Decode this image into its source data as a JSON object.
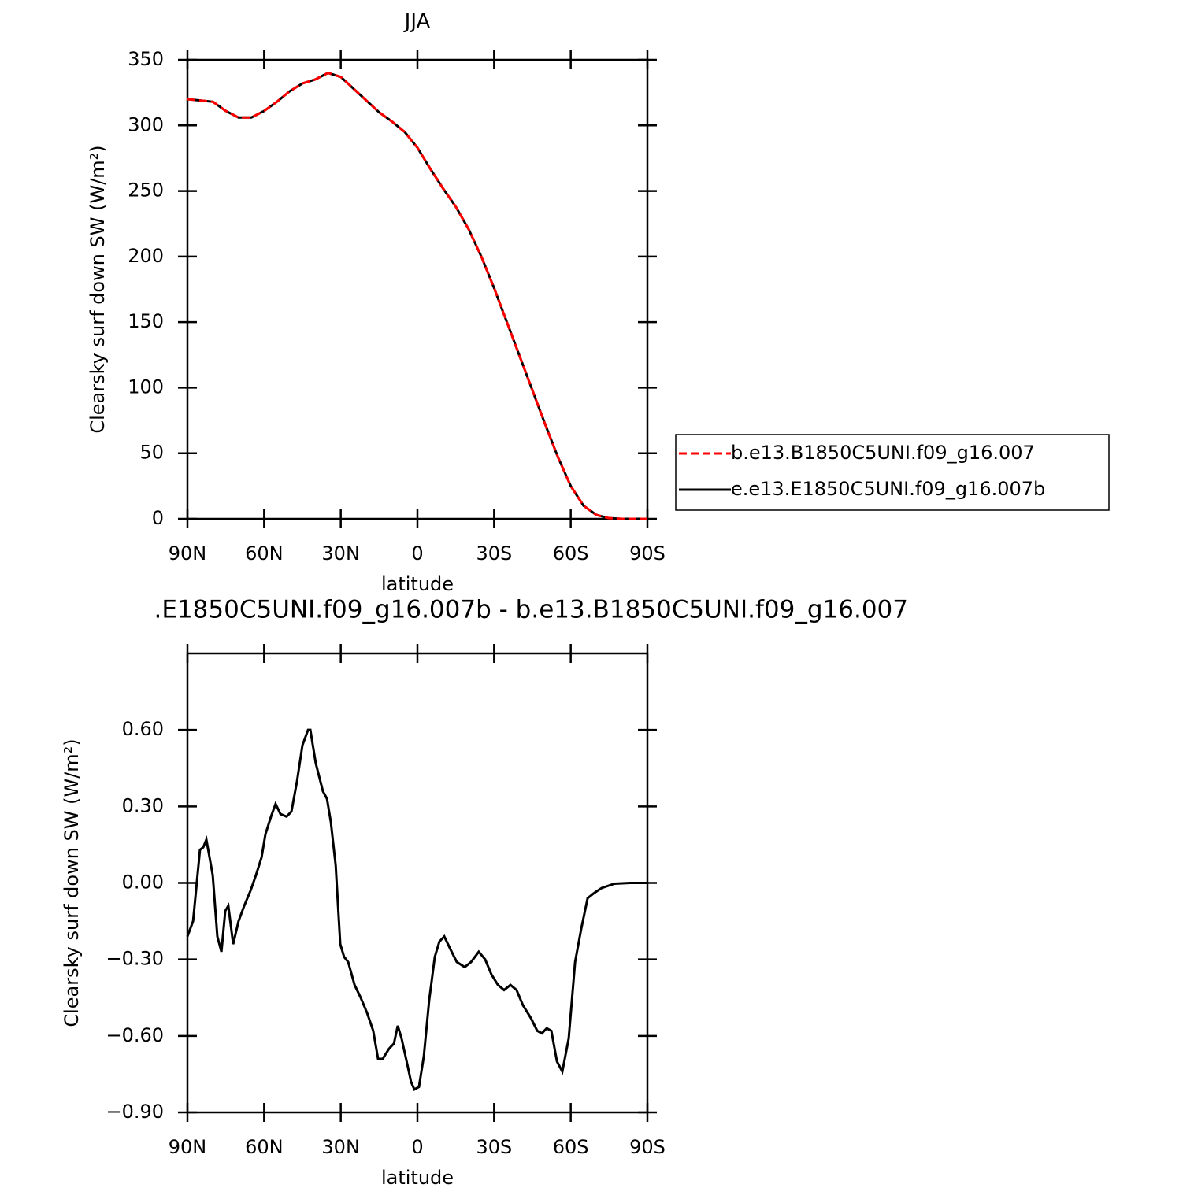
{
  "chart_data": [
    {
      "type": "line",
      "title": "JJA",
      "xlabel": "latitude",
      "ylabel": "Clearsky surf down SW (W/m²)",
      "x": [
        90,
        85,
        80,
        75,
        70,
        65,
        60,
        55,
        50,
        45,
        40,
        35,
        30,
        25,
        20,
        15,
        10,
        5,
        0,
        -5,
        -10,
        -15,
        -20,
        -25,
        -30,
        -35,
        -40,
        -45,
        -50,
        -55,
        -60,
        -65,
        -70,
        -75,
        -80,
        -85,
        -90
      ],
      "series": [
        {
          "name": "b.e13.B1850C5UNI.f09_g16.007",
          "color": "#ff0000",
          "style": "dashed",
          "values": [
            320,
            319,
            318,
            311,
            306,
            306,
            311,
            318,
            326,
            332,
            335,
            340,
            337,
            328,
            319,
            310,
            303,
            295,
            283,
            267,
            252,
            238,
            221,
            200,
            176,
            150,
            124,
            98,
            72,
            47,
            25,
            10,
            3,
            0.5,
            0,
            0,
            0
          ]
        },
        {
          "name": "e.e13.E1850C5UNI.f09_g16.007b",
          "color": "#000000",
          "style": "solid",
          "values": [
            320,
            319,
            318,
            311,
            306,
            306,
            311,
            318,
            326,
            332,
            335,
            340,
            337,
            328,
            319,
            310,
            303,
            295,
            283,
            267,
            252,
            238,
            221,
            200,
            176,
            150,
            124,
            98,
            72,
            47,
            25,
            10,
            3,
            0.5,
            0,
            0,
            0
          ]
        }
      ],
      "xlim": [
        90,
        -90
      ],
      "xticks": [
        {
          "value": 90,
          "label": "90N"
        },
        {
          "value": 60,
          "label": "60N"
        },
        {
          "value": 30,
          "label": "30N"
        },
        0,
        {
          "value": -30,
          "label": "30S"
        },
        {
          "value": -60,
          "label": "60S"
        },
        {
          "value": -90,
          "label": "90S"
        }
      ],
      "ylim": [
        0,
        350
      ],
      "yticks": [
        0,
        50,
        100,
        150,
        200,
        250,
        300,
        350
      ],
      "legend": "right"
    },
    {
      "type": "line",
      "title": ".E1850C5UNI.f09_g16.007b - b.e13.B1850C5UNI.f09_g16.007",
      "xlabel": "latitude",
      "ylabel": "Clearsky surf down SW (W/m²)",
      "x": [
        90,
        87.8,
        85.1,
        83.8,
        82.6,
        80.1,
        78.3,
        76.7,
        75.2,
        74,
        72.1,
        70,
        67.8,
        65.3,
        63.2,
        61,
        59.5,
        57.3,
        55.5,
        53.6,
        51.2,
        49.3,
        47.1,
        45,
        42.8,
        41.9,
        39.8,
        37,
        35.4,
        33.9,
        32,
        30.2,
        28.7,
        27.1,
        24.6,
        22.2,
        19.7,
        17.3,
        15.4,
        13.6,
        11.1,
        9.2,
        7.7,
        6.2,
        4,
        2.5,
        1.2,
        -0.6,
        -2.5,
        -4.6,
        -6.8,
        -8.6,
        -10.5,
        -12.9,
        -15.4,
        -18.5,
        -21,
        -24,
        -26.5,
        -29,
        -31.5,
        -33.9,
        -36.4,
        -38.8,
        -41.3,
        -44.4,
        -46.9,
        -48.7,
        -50.6,
        -52.4,
        -54.6,
        -56.7,
        -59.2,
        -61.7,
        -64.1,
        -66.6,
        -69.1,
        -72.1,
        -77.1,
        -83.2,
        -90
      ],
      "values": [
        -0.21,
        -0.15,
        0.13,
        0.14,
        0.17,
        0.03,
        -0.21,
        -0.27,
        -0.11,
        -0.09,
        -0.24,
        -0.15,
        -0.09,
        -0.03,
        0.03,
        0.1,
        0.19,
        0.26,
        0.31,
        0.27,
        0.26,
        0.28,
        0.4,
        0.54,
        0.6,
        0.6,
        0.47,
        0.36,
        0.33,
        0.24,
        0.07,
        -0.24,
        -0.29,
        -0.31,
        -0.4,
        -0.45,
        -0.51,
        -0.58,
        -0.69,
        -0.69,
        -0.65,
        -0.63,
        -0.56,
        -0.61,
        -0.71,
        -0.78,
        -0.81,
        -0.8,
        -0.68,
        -0.46,
        -0.29,
        -0.23,
        -0.21,
        -0.26,
        -0.31,
        -0.33,
        -0.31,
        -0.27,
        -0.3,
        -0.36,
        -0.4,
        -0.42,
        -0.4,
        -0.42,
        -0.48,
        -0.53,
        -0.58,
        -0.59,
        -0.57,
        -0.58,
        -0.7,
        -0.74,
        -0.61,
        -0.31,
        -0.18,
        -0.06,
        -0.04,
        -0.02,
        -0.003,
        0,
        0
      ],
      "color": "#000000",
      "xlim": [
        90,
        -90
      ],
      "xticks": [
        {
          "value": 90,
          "label": "90N"
        },
        {
          "value": 60,
          "label": "60N"
        },
        {
          "value": 30,
          "label": "30N"
        },
        0,
        {
          "value": -30,
          "label": "30S"
        },
        {
          "value": -60,
          "label": "60S"
        },
        {
          "value": -90,
          "label": "90S"
        }
      ],
      "ylim": [
        -0.9,
        0.9
      ],
      "yticks": [
        {
          "value": -0.9,
          "label": "−0.90"
        },
        {
          "value": -0.6,
          "label": "−0.60"
        },
        {
          "value": -0.3,
          "label": "−0.30"
        },
        {
          "value": 0,
          "label": "0.00"
        },
        {
          "value": 0.3,
          "label": "0.30"
        },
        {
          "value": 0.6,
          "label": "0.60"
        }
      ]
    }
  ]
}
